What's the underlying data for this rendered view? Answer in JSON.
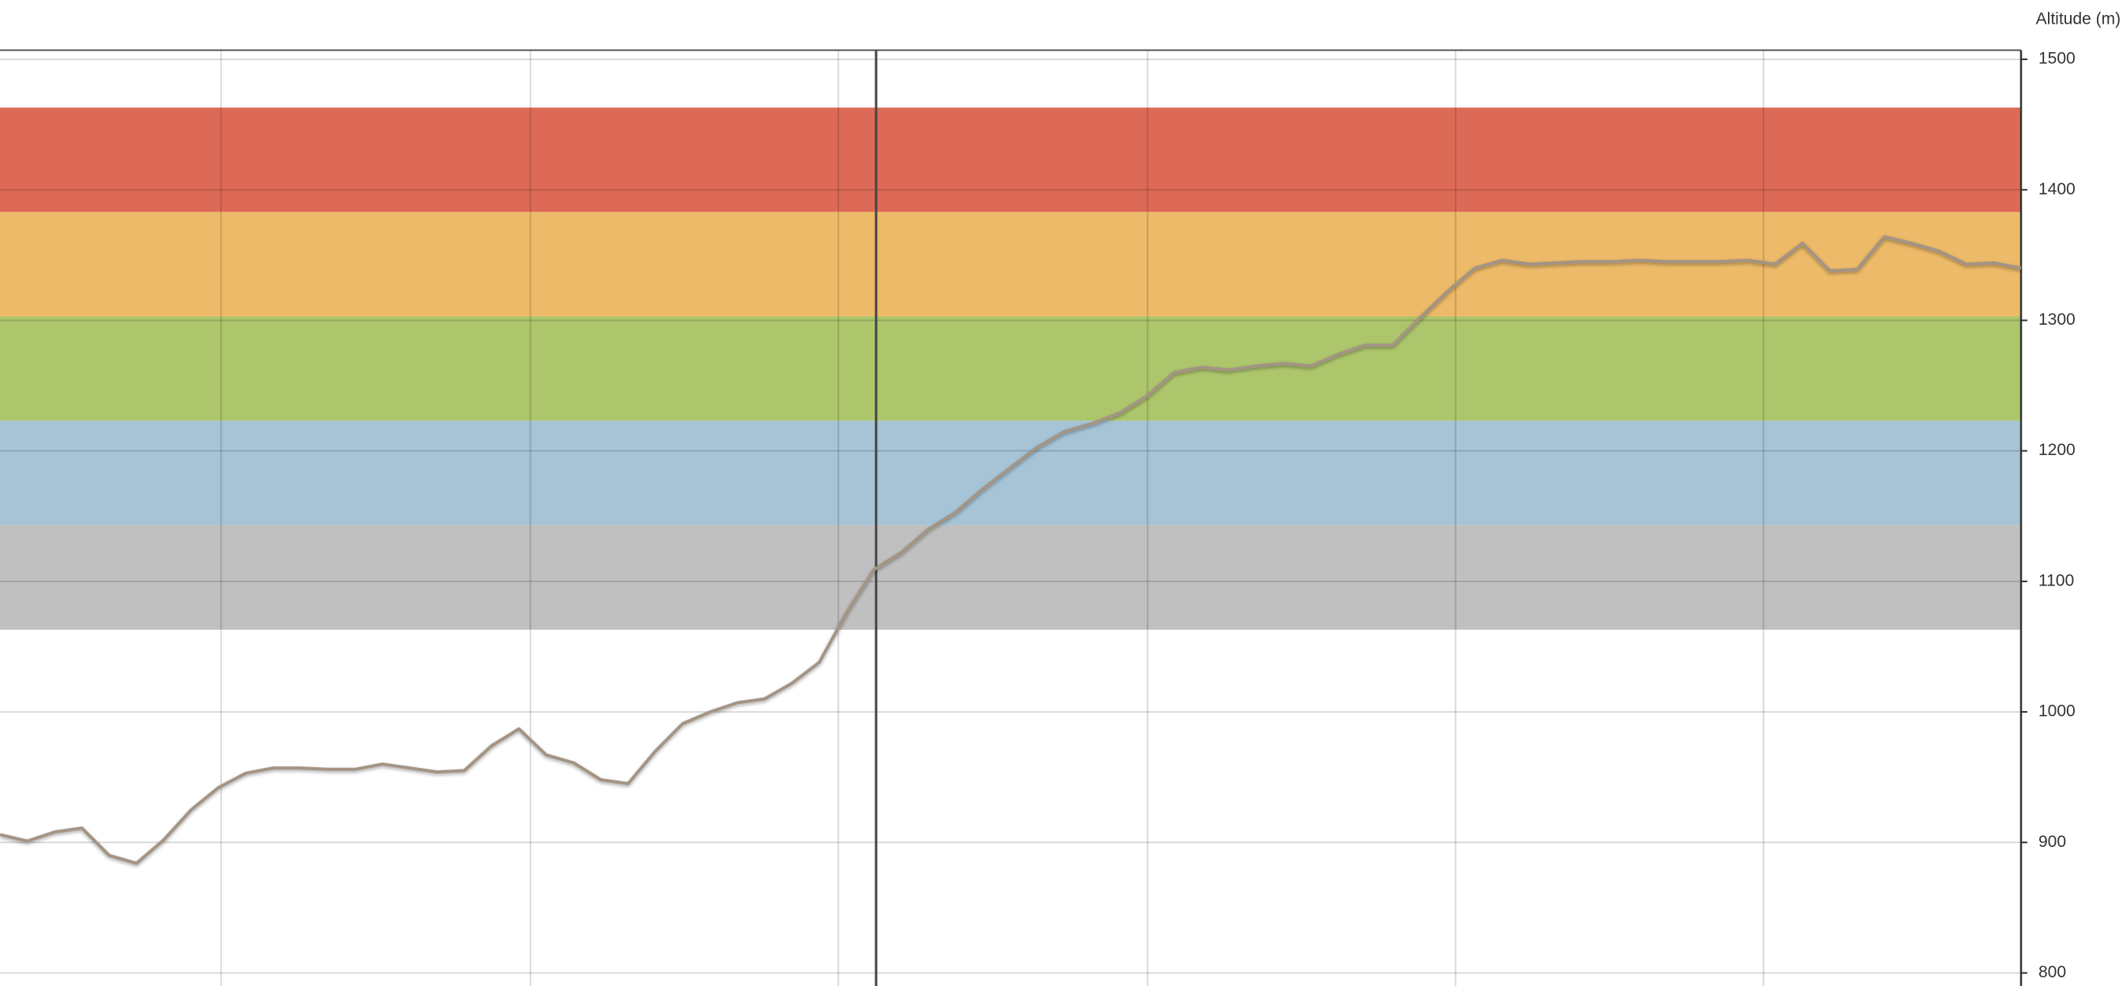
{
  "chart_data": {
    "type": "line",
    "y_axis_label": "Altitude (m)",
    "ylim": [
      790,
      1507
    ],
    "yticks": [
      800,
      900,
      1000,
      1100,
      1200,
      1300,
      1400,
      1500
    ],
    "grid": true,
    "bands": [
      {
        "from": 1383,
        "to": 1463,
        "color": "#dd6a56"
      },
      {
        "from": 1303,
        "to": 1383,
        "color": "#ecba68"
      },
      {
        "from": 1223,
        "to": 1303,
        "color": "#adc66c"
      },
      {
        "from": 1143,
        "to": 1223,
        "color": "#a6c4d6"
      },
      {
        "from": 1063,
        "to": 1143,
        "color": "#c0c0c0"
      }
    ],
    "series": [
      {
        "color": "#a39484",
        "values": [
          906,
          901,
          908,
          911,
          890,
          884,
          902,
          925,
          942,
          953,
          957,
          957,
          956,
          956,
          960,
          957,
          954,
          955,
          974,
          987,
          967,
          961,
          948,
          945,
          970,
          991,
          1000,
          1007,
          1010,
          1022,
          1038,
          1076,
          1109,
          1122,
          1140,
          1153,
          1171,
          1187,
          1203,
          1215,
          1221,
          1229,
          1242,
          1260,
          1264,
          1262,
          1265,
          1267,
          1265,
          1274,
          1281,
          1281,
          1302,
          1322,
          1340,
          1346,
          1343,
          1344,
          1345,
          1345,
          1346,
          1345,
          1345,
          1345,
          1346,
          1343,
          1359,
          1338,
          1339,
          1364,
          1359,
          1353,
          1343,
          1344,
          1340
        ]
      }
    ]
  }
}
